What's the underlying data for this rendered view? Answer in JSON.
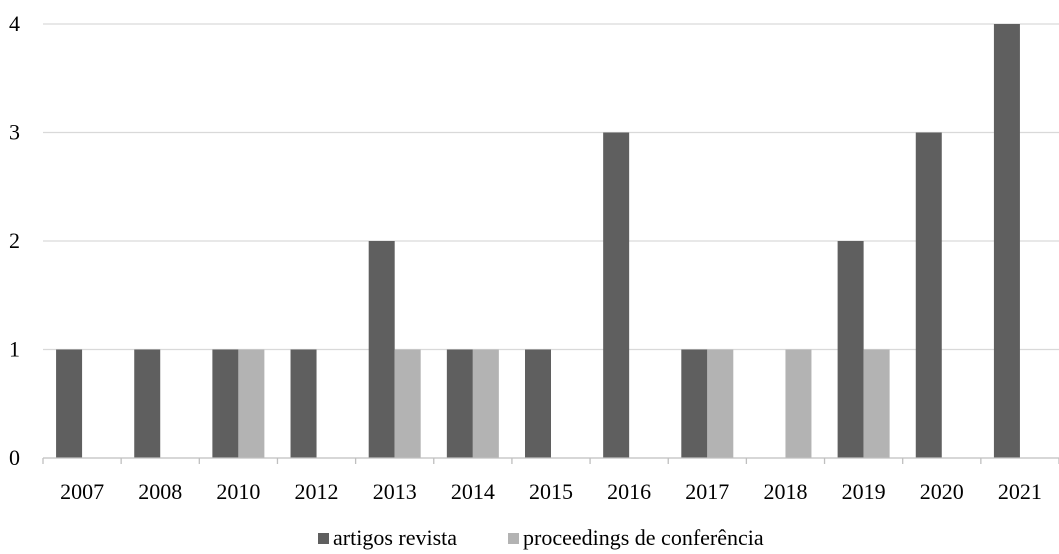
{
  "chart_data": {
    "type": "bar",
    "categories": [
      "2007",
      "2008",
      "2010",
      "2012",
      "2013",
      "2014",
      "2015",
      "2016",
      "2017",
      "2018",
      "2019",
      "2020",
      "2021"
    ],
    "series": [
      {
        "name": "artigos revista",
        "color": "#5f5f5f",
        "values": [
          1,
          1,
          1,
          1,
          2,
          1,
          1,
          3,
          1,
          0,
          2,
          3,
          4
        ]
      },
      {
        "name": "proceedings de conferência",
        "color": "#b3b3b3",
        "values": [
          0,
          0,
          1,
          0,
          1,
          1,
          0,
          0,
          1,
          1,
          1,
          0,
          0
        ]
      }
    ],
    "yticks": [
      "0",
      "1",
      "2",
      "3",
      "4"
    ],
    "ylim": [
      0,
      4
    ],
    "grid": true,
    "legend_position": "bottom",
    "title": "",
    "xlabel": "",
    "ylabel": ""
  }
}
